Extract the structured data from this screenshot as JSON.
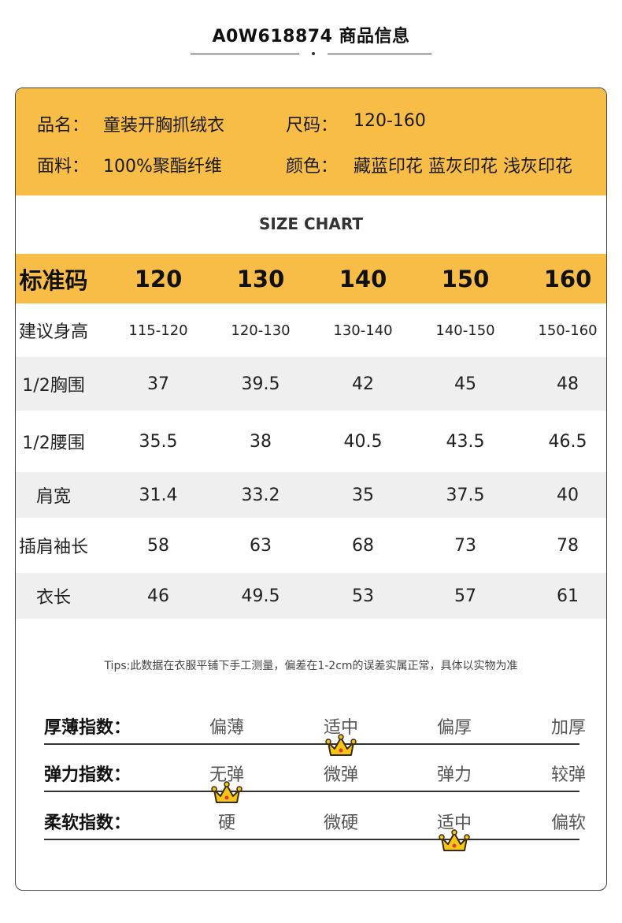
{
  "header": {
    "title": "A0W618874  商品信息"
  },
  "info": {
    "name_label": "品名：",
    "name_value": "童装开胸抓绒衣",
    "size_label": "尺码：",
    "size_value": "120-160",
    "fabric_label": "面料：",
    "fabric_value": "100%聚酯纤维",
    "color_label": "颜色：",
    "color_value": "藏蓝印花 蓝灰印花 浅灰印花"
  },
  "size_chart": {
    "title": "SIZE CHART",
    "header": [
      "标准码",
      "120",
      "130",
      "140",
      "150",
      "160"
    ],
    "rows": [
      [
        "建议身高",
        "115-120",
        "120-130",
        "130-140",
        "140-150",
        "150-160"
      ],
      [
        "1/2胸围",
        "37",
        "39.5",
        "42",
        "45",
        "48"
      ],
      [
        "1/2腰围",
        "35.5",
        "38",
        "40.5",
        "43.5",
        "46.5"
      ],
      [
        "肩宽",
        "31.4",
        "33.2",
        "35",
        "37.5",
        "40"
      ],
      [
        "插肩袖长",
        "58",
        "63",
        "68",
        "73",
        "78"
      ],
      [
        "衣长",
        "46",
        "49.5",
        "53",
        "57",
        "61"
      ]
    ]
  },
  "tips": "Tips:此数据在衣服平铺下手工测量，偏差在1-2cm的误差实属正常，具体以实物为准",
  "indices": [
    {
      "label": "厚薄指数：",
      "options": [
        "偏薄",
        "适中",
        "偏厚",
        "加厚"
      ],
      "selected_index": 1
    },
    {
      "label": "弹力指数：",
      "options": [
        "无弹",
        "微弹",
        "弹力",
        "较弹"
      ],
      "selected_index": 0
    },
    {
      "label": "柔软指数：",
      "options": [
        "硬",
        "微硬",
        "适中",
        "偏软"
      ],
      "selected_index": 2
    }
  ],
  "colors": {
    "accent": "#f7bd47",
    "row_gray": "#efefef",
    "crown": "#f5c518"
  },
  "icons": {
    "selected_marker": "crown-icon"
  }
}
